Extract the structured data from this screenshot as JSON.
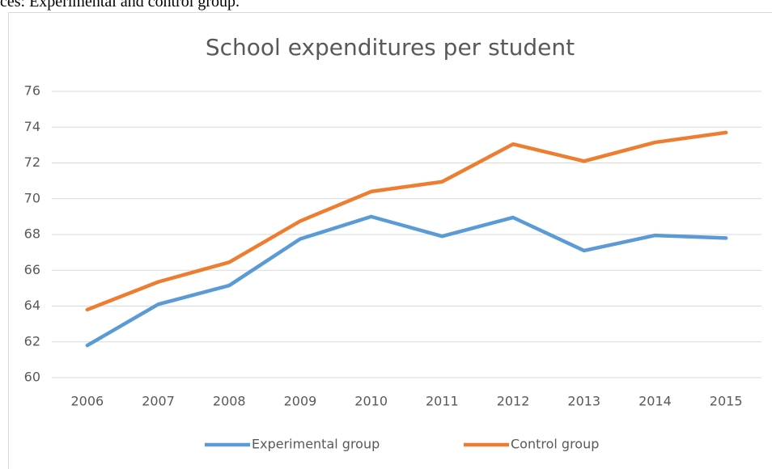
{
  "caption": "ces: Experimental and control group.",
  "chart_data": {
    "type": "line",
    "title": "School expenditures per student",
    "categories": [
      "2006",
      "2007",
      "2008",
      "2009",
      "2010",
      "2011",
      "2012",
      "2013",
      "2014",
      "2015"
    ],
    "series": [
      {
        "name": "Experimental group",
        "color": "#5b9bd5",
        "values": [
          61.8,
          64.1,
          65.15,
          67.75,
          69.0,
          67.9,
          68.95,
          67.1,
          67.95,
          67.8
        ]
      },
      {
        "name": "Control group",
        "color": "#ed7d31",
        "values": [
          63.8,
          65.35,
          66.45,
          68.75,
          70.4,
          70.95,
          73.05,
          72.1,
          73.15,
          73.7
        ]
      }
    ],
    "ylim": [
      60,
      76
    ],
    "yticks": [
      60,
      62,
      64,
      66,
      68,
      70,
      72,
      74,
      76
    ],
    "grid": true,
    "legend": "bottom"
  }
}
